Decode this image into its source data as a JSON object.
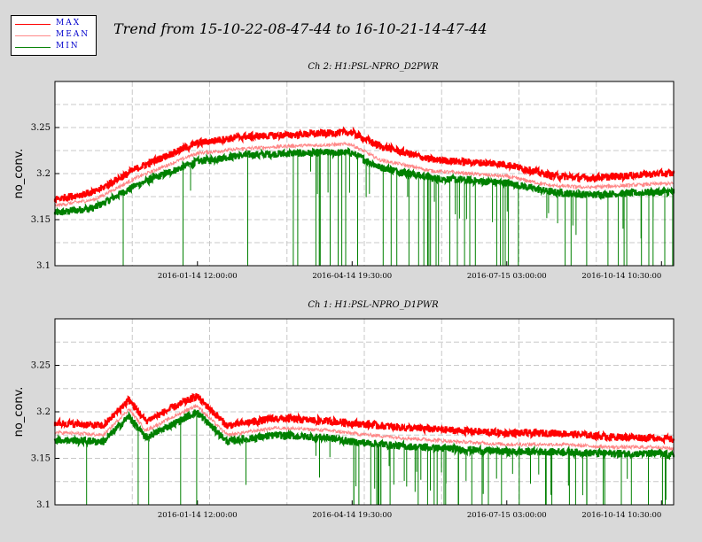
{
  "title": "Trend from 15-10-22-08-47-44 to 16-10-21-14-47-44",
  "legend": [
    {
      "label": "MAX",
      "color": "#ff0000"
    },
    {
      "label": "MEAN",
      "color": "#ff8888"
    },
    {
      "label": "MIN",
      "color": "#008000"
    }
  ],
  "chart_data": [
    {
      "type": "line",
      "title": "Ch 2: H1:PSL-NPRO_D2PWR",
      "ylabel": "no_conv.",
      "xlabel": "",
      "ylim": [
        3.1,
        3.3
      ],
      "yticks": [
        "3.1",
        "3.15",
        "3.2",
        "3.25"
      ],
      "x_range": [
        "2015-10-22 08:47:44",
        "2016-10-21 14:47:44"
      ],
      "xticks": [
        "2016-01-14 12:00:00",
        "2016-04-14 19:30:00",
        "2016-07-15 03:00:00",
        "2016-10-14 10:30:00"
      ],
      "grid": true,
      "series": [
        {
          "name": "MAX",
          "color": "#ff0000",
          "x": [
            "2015-10-22",
            "2015-11-15",
            "2015-12-10",
            "2016-01-14",
            "2016-02-10",
            "2016-03-10",
            "2016-04-14",
            "2016-05-01",
            "2016-06-01",
            "2016-07-15",
            "2016-08-10",
            "2016-09-01",
            "2016-10-14",
            "2016-10-21"
          ],
          "values": [
            3.172,
            3.18,
            3.206,
            3.233,
            3.24,
            3.242,
            3.245,
            3.23,
            3.215,
            3.21,
            3.198,
            3.195,
            3.2,
            3.2
          ]
        },
        {
          "name": "MEAN",
          "color": "#ff8888",
          "x": [
            "2015-10-22",
            "2015-11-15",
            "2015-12-10",
            "2016-01-14",
            "2016-02-10",
            "2016-03-10",
            "2016-04-14",
            "2016-05-01",
            "2016-06-01",
            "2016-07-15",
            "2016-08-10",
            "2016-09-01",
            "2016-10-14",
            "2016-10-21"
          ],
          "values": [
            3.165,
            3.172,
            3.196,
            3.222,
            3.227,
            3.23,
            3.232,
            3.215,
            3.203,
            3.197,
            3.187,
            3.185,
            3.189,
            3.189
          ]
        },
        {
          "name": "MIN",
          "color": "#008000",
          "x": [
            "2015-10-22",
            "2015-11-15",
            "2015-12-10",
            "2016-01-14",
            "2016-02-10",
            "2016-03-10",
            "2016-04-14",
            "2016-05-01",
            "2016-06-01",
            "2016-07-15",
            "2016-08-10",
            "2016-09-01",
            "2016-10-14",
            "2016-10-21"
          ],
          "values": [
            3.157,
            3.163,
            3.188,
            3.213,
            3.22,
            3.222,
            3.223,
            3.207,
            3.195,
            3.19,
            3.18,
            3.177,
            3.18,
            3.18
          ]
        }
      ]
    },
    {
      "type": "line",
      "title": "Ch 1: H1:PSL-NPRO_D1PWR",
      "ylabel": "no_conv.",
      "xlabel": "",
      "ylim": [
        3.1,
        3.3
      ],
      "yticks": [
        "3.1",
        "3.15",
        "3.2",
        "3.25"
      ],
      "x_range": [
        "2015-10-22 08:47:44",
        "2016-10-21 14:47:44"
      ],
      "xticks": [
        "2016-01-14 12:00:00",
        "2016-04-14 19:30:00",
        "2016-07-15 03:00:00",
        "2016-10-14 10:30:00"
      ],
      "grid": true,
      "series": [
        {
          "name": "MAX",
          "color": "#ff0000",
          "x": [
            "2015-10-22",
            "2015-11-20",
            "2015-12-05",
            "2015-12-15",
            "2016-01-14",
            "2016-02-01",
            "2016-03-01",
            "2016-04-01",
            "2016-04-14",
            "2016-05-15",
            "2016-06-15",
            "2016-07-15",
            "2016-08-15",
            "2016-09-15",
            "2016-10-14",
            "2016-10-21"
          ],
          "values": [
            3.188,
            3.185,
            3.213,
            3.19,
            3.217,
            3.185,
            3.193,
            3.19,
            3.188,
            3.183,
            3.18,
            3.177,
            3.177,
            3.173,
            3.172,
            3.17
          ]
        },
        {
          "name": "MEAN",
          "color": "#ff8888",
          "x": [
            "2015-10-22",
            "2015-11-20",
            "2015-12-05",
            "2015-12-15",
            "2016-01-14",
            "2016-02-01",
            "2016-03-01",
            "2016-04-01",
            "2016-04-14",
            "2016-05-15",
            "2016-06-15",
            "2016-07-15",
            "2016-08-15",
            "2016-09-15",
            "2016-10-14",
            "2016-10-21"
          ],
          "values": [
            3.178,
            3.175,
            3.203,
            3.18,
            3.207,
            3.175,
            3.183,
            3.18,
            3.177,
            3.172,
            3.168,
            3.165,
            3.165,
            3.162,
            3.162,
            3.16
          ]
        },
        {
          "name": "MIN",
          "color": "#008000",
          "x": [
            "2015-10-22",
            "2015-11-20",
            "2015-12-05",
            "2015-12-15",
            "2016-01-14",
            "2016-02-01",
            "2016-03-01",
            "2016-04-01",
            "2016-04-14",
            "2016-05-15",
            "2016-06-15",
            "2016-07-15",
            "2016-08-15",
            "2016-09-15",
            "2016-10-14",
            "2016-10-21"
          ],
          "values": [
            3.17,
            3.168,
            3.195,
            3.172,
            3.2,
            3.168,
            3.175,
            3.172,
            3.168,
            3.163,
            3.16,
            3.157,
            3.157,
            3.155,
            3.155,
            3.153
          ]
        }
      ]
    }
  ]
}
